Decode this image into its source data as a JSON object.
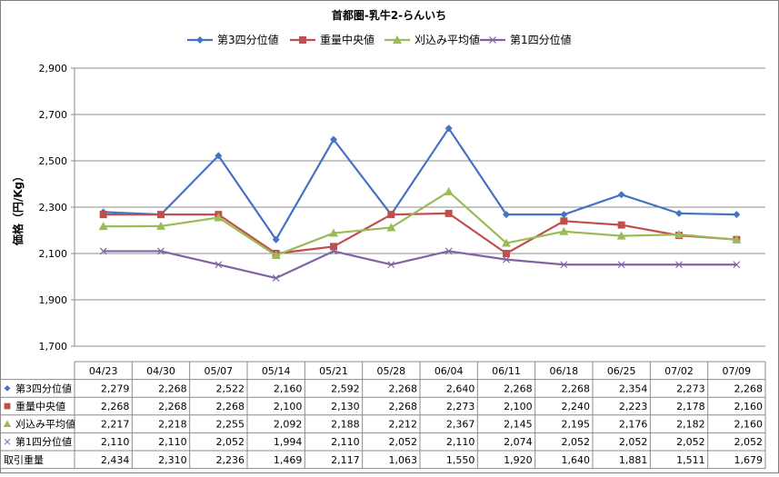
{
  "chart_data": {
    "type": "line",
    "title": "首都圏-乳牛2-らんいち",
    "ylabel": "価格（円/Kg）",
    "xlabel": "",
    "ylim": [
      1700,
      2900
    ],
    "yticks": [
      1700,
      1900,
      2100,
      2300,
      2500,
      2700,
      2900
    ],
    "ytick_labels": [
      "1,700",
      "1,900",
      "2,100",
      "2,300",
      "2,500",
      "2,700",
      "2,900"
    ],
    "grid": true,
    "legend_position": "top",
    "categories": [
      "04/23",
      "04/30",
      "05/07",
      "05/14",
      "05/21",
      "05/28",
      "06/04",
      "06/11",
      "06/18",
      "06/25",
      "07/02",
      "07/09"
    ],
    "series": [
      {
        "name": "第3四分位値",
        "color": "#4472C4",
        "marker": "diamond",
        "values": [
          2279,
          2268,
          2522,
          2160,
          2592,
          2268,
          2640,
          2268,
          2268,
          2354,
          2273,
          2268
        ],
        "labels": [
          "2,279",
          "2,268",
          "2,522",
          "2,160",
          "2,592",
          "2,268",
          "2,640",
          "2,268",
          "2,268",
          "2,354",
          "2,273",
          "2,268"
        ]
      },
      {
        "name": "重量中央値",
        "color": "#C0504D",
        "marker": "square",
        "values": [
          2268,
          2268,
          2268,
          2100,
          2130,
          2268,
          2273,
          2100,
          2240,
          2223,
          2178,
          2160
        ],
        "labels": [
          "2,268",
          "2,268",
          "2,268",
          "2,100",
          "2,130",
          "2,268",
          "2,273",
          "2,100",
          "2,240",
          "2,223",
          "2,178",
          "2,160"
        ]
      },
      {
        "name": "刈込み平均値",
        "color": "#9BBB59",
        "marker": "triangle",
        "values": [
          2217,
          2218,
          2255,
          2092,
          2188,
          2212,
          2367,
          2145,
          2195,
          2176,
          2182,
          2160
        ],
        "labels": [
          "2,217",
          "2,218",
          "2,255",
          "2,092",
          "2,188",
          "2,212",
          "2,367",
          "2,145",
          "2,195",
          "2,176",
          "2,182",
          "2,160"
        ]
      },
      {
        "name": "第1四分位値",
        "color": "#8064A2",
        "marker": "x",
        "values": [
          2110,
          2110,
          2052,
          1994,
          2110,
          2052,
          2110,
          2074,
          2052,
          2052,
          2052,
          2052
        ],
        "labels": [
          "2,110",
          "2,110",
          "2,052",
          "1,994",
          "2,110",
          "2,052",
          "2,110",
          "2,074",
          "2,052",
          "2,052",
          "2,052",
          "2,052"
        ]
      }
    ],
    "table_extra_rows": [
      {
        "name": "取引重量",
        "values": [
          2434,
          2310,
          2236,
          1469,
          2117,
          1063,
          1550,
          1920,
          1640,
          1881,
          1511,
          1679
        ],
        "labels": [
          "2,434",
          "2,310",
          "2,236",
          "1,469",
          "2,117",
          "1,063",
          "1,550",
          "1,920",
          "1,640",
          "1,881",
          "1,511",
          "1,679"
        ]
      }
    ]
  }
}
